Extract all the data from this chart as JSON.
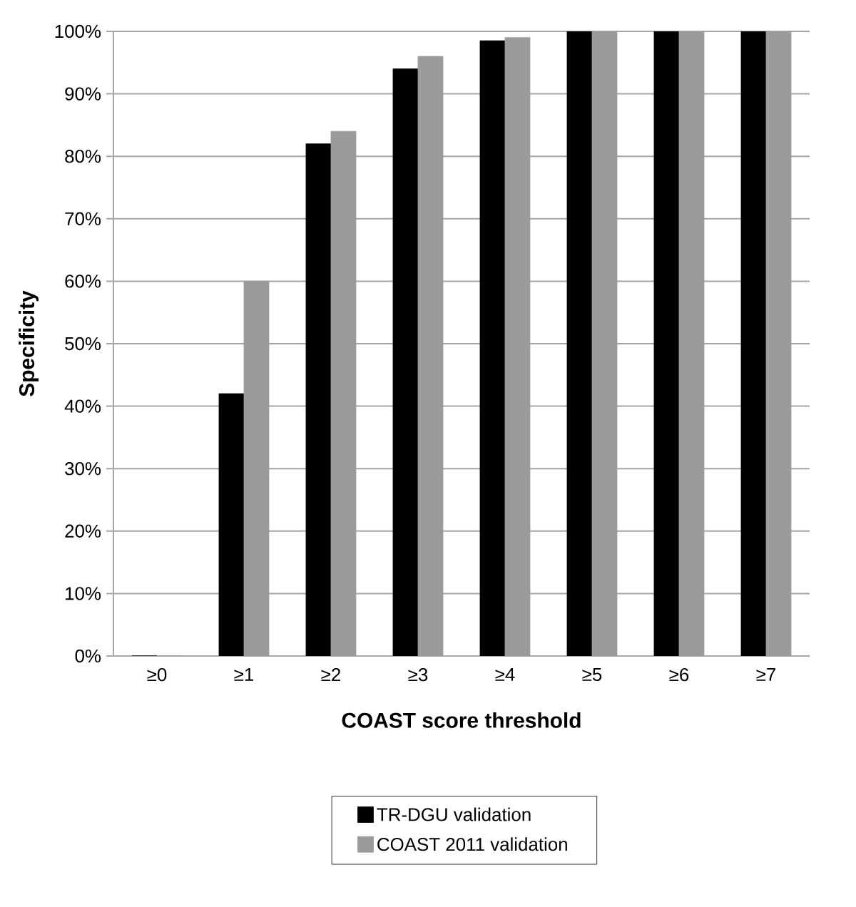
{
  "chart_data": {
    "type": "bar",
    "xlabel": "COAST score threshold",
    "ylabel": "Specificity",
    "categories": [
      "≥0",
      "≥1",
      "≥2",
      "≥3",
      "≥4",
      "≥5",
      "≥6",
      "≥7"
    ],
    "series": [
      {
        "name": "TR-DGU validation",
        "color": "#000000",
        "values": [
          0,
          42,
          82,
          94,
          98.5,
          100,
          100,
          100
        ]
      },
      {
        "name": "COAST 2011 validation",
        "color": "#9b9b9b",
        "values": [
          0,
          60,
          84,
          96,
          99,
          100,
          100,
          100
        ]
      }
    ],
    "ylim": [
      0,
      100
    ],
    "yticks": [
      {
        "value": 0,
        "label": "0%"
      },
      {
        "value": 10,
        "label": "10%"
      },
      {
        "value": 20,
        "label": "20%"
      },
      {
        "value": 30,
        "label": "30%"
      },
      {
        "value": 40,
        "label": "40%"
      },
      {
        "value": 50,
        "label": "50%"
      },
      {
        "value": 60,
        "label": "60%"
      },
      {
        "value": 70,
        "label": "70%"
      },
      {
        "value": 80,
        "label": "80%"
      },
      {
        "value": 90,
        "label": "90%"
      },
      {
        "value": 100,
        "label": "100%"
      }
    ],
    "grid": "y",
    "legend": "bottom"
  }
}
